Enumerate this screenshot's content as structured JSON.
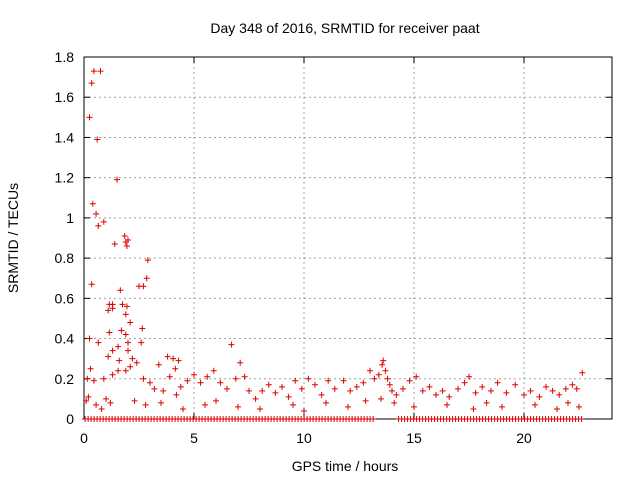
{
  "chart_data": {
    "type": "scatter",
    "title": "Day 348 of 2016, SRMTID for receiver paat",
    "xlabel": "GPS time / hours",
    "ylabel": "SRMTID / TECUs",
    "xlim": [
      0,
      24
    ],
    "ylim": [
      0,
      1.8
    ],
    "xticks": [
      0,
      5,
      10,
      15,
      20
    ],
    "yticks": [
      0,
      0.2,
      0.4,
      0.6,
      0.8,
      1,
      1.2,
      1.4,
      1.6,
      1.8
    ],
    "ytick_labels": [
      "0",
      "0.2",
      "0.4",
      "0.6",
      "0.8",
      "1",
      "1.2",
      "1.4",
      "1.6",
      "1.8"
    ],
    "grid": true,
    "marker": "+",
    "color": "#dd0000",
    "baseline_segments": [
      [
        0.05,
        13.2
      ],
      [
        14.3,
        22.7
      ]
    ],
    "points": [
      [
        0.45,
        1.73
      ],
      [
        0.35,
        1.67
      ],
      [
        0.25,
        1.5
      ],
      [
        0.6,
        1.39
      ],
      [
        0.75,
        1.73
      ],
      [
        0.4,
        1.07
      ],
      [
        0.55,
        1.02
      ],
      [
        0.65,
        0.96
      ],
      [
        0.9,
        0.98
      ],
      [
        1.5,
        1.19
      ],
      [
        1.85,
        0.91
      ],
      [
        1.9,
        0.88
      ],
      [
        2.0,
        0.89
      ],
      [
        1.95,
        0.86
      ],
      [
        1.4,
        0.87
      ],
      [
        2.9,
        0.79
      ],
      [
        2.85,
        0.7
      ],
      [
        2.7,
        0.66
      ],
      [
        2.5,
        0.66
      ],
      [
        0.35,
        0.67
      ],
      [
        1.65,
        0.64
      ],
      [
        1.15,
        0.57
      ],
      [
        1.3,
        0.57
      ],
      [
        1.75,
        0.57
      ],
      [
        1.95,
        0.56
      ],
      [
        1.9,
        0.52
      ],
      [
        2.1,
        0.48
      ],
      [
        1.1,
        0.54
      ],
      [
        1.3,
        0.55
      ],
      [
        2.65,
        0.45
      ],
      [
        1.7,
        0.44
      ],
      [
        1.9,
        0.42
      ],
      [
        1.15,
        0.43
      ],
      [
        2.0,
        0.38
      ],
      [
        0.65,
        0.38
      ],
      [
        0.25,
        0.4
      ],
      [
        2.6,
        0.38
      ],
      [
        1.55,
        0.36
      ],
      [
        1.3,
        0.34
      ],
      [
        2.0,
        0.34
      ],
      [
        1.1,
        0.31
      ],
      [
        2.2,
        0.3
      ],
      [
        1.6,
        0.29
      ],
      [
        2.4,
        0.28
      ],
      [
        0.3,
        0.25
      ],
      [
        1.55,
        0.24
      ],
      [
        1.3,
        0.22
      ],
      [
        1.9,
        0.24
      ],
      [
        2.1,
        0.26
      ],
      [
        0.15,
        0.2
      ],
      [
        0.45,
        0.19
      ],
      [
        0.9,
        0.2
      ],
      [
        2.7,
        0.2
      ],
      [
        3.4,
        0.27
      ],
      [
        3.8,
        0.31
      ],
      [
        4.05,
        0.3
      ],
      [
        4.3,
        0.29
      ],
      [
        4.15,
        0.25
      ],
      [
        6.7,
        0.37
      ],
      [
        3.0,
        0.18
      ],
      [
        3.2,
        0.15
      ],
      [
        3.6,
        0.14
      ],
      [
        3.9,
        0.21
      ],
      [
        4.2,
        0.12
      ],
      [
        4.4,
        0.16
      ],
      [
        4.7,
        0.19
      ],
      [
        5.0,
        0.22
      ],
      [
        5.3,
        0.18
      ],
      [
        5.6,
        0.21
      ],
      [
        5.9,
        0.24
      ],
      [
        6.2,
        0.18
      ],
      [
        6.5,
        0.15
      ],
      [
        6.9,
        0.2
      ],
      [
        7.1,
        0.28
      ],
      [
        7.3,
        0.21
      ],
      [
        7.5,
        0.14
      ],
      [
        7.8,
        0.1
      ],
      [
        8.1,
        0.14
      ],
      [
        8.4,
        0.17
      ],
      [
        8.7,
        0.13
      ],
      [
        9.0,
        0.16
      ],
      [
        9.3,
        0.11
      ],
      [
        9.6,
        0.19
      ],
      [
        9.9,
        0.15
      ],
      [
        10.2,
        0.2
      ],
      [
        10.5,
        0.17
      ],
      [
        10.8,
        0.12
      ],
      [
        11.1,
        0.19
      ],
      [
        11.4,
        0.15
      ],
      [
        11.8,
        0.19
      ],
      [
        12.1,
        0.14
      ],
      [
        12.4,
        0.16
      ],
      [
        12.7,
        0.18
      ],
      [
        13.0,
        0.24
      ],
      [
        13.2,
        0.2
      ],
      [
        13.4,
        0.22
      ],
      [
        13.55,
        0.27
      ],
      [
        13.6,
        0.29
      ],
      [
        13.7,
        0.24
      ],
      [
        13.8,
        0.2
      ],
      [
        13.9,
        0.17
      ],
      [
        14.0,
        0.14
      ],
      [
        14.2,
        0.12
      ],
      [
        14.5,
        0.15
      ],
      [
        14.8,
        0.19
      ],
      [
        15.1,
        0.21
      ],
      [
        15.4,
        0.14
      ],
      [
        15.7,
        0.16
      ],
      [
        16.0,
        0.12
      ],
      [
        16.3,
        0.14
      ],
      [
        16.6,
        0.11
      ],
      [
        17.0,
        0.15
      ],
      [
        17.3,
        0.18
      ],
      [
        17.5,
        0.21
      ],
      [
        17.8,
        0.13
      ],
      [
        18.1,
        0.16
      ],
      [
        18.5,
        0.14
      ],
      [
        18.8,
        0.18
      ],
      [
        19.2,
        0.13
      ],
      [
        19.6,
        0.17
      ],
      [
        20.0,
        0.12
      ],
      [
        20.3,
        0.14
      ],
      [
        20.7,
        0.11
      ],
      [
        21.0,
        0.16
      ],
      [
        21.3,
        0.14
      ],
      [
        21.6,
        0.12
      ],
      [
        21.9,
        0.15
      ],
      [
        22.2,
        0.17
      ],
      [
        22.4,
        0.15
      ],
      [
        22.65,
        0.23
      ],
      [
        3.5,
        0.08
      ],
      [
        4.5,
        0.05
      ],
      [
        5.5,
        0.07
      ],
      [
        6.0,
        0.09
      ],
      [
        7.0,
        0.06
      ],
      [
        8.0,
        0.05
      ],
      [
        9.5,
        0.07
      ],
      [
        10.0,
        0.04
      ],
      [
        11.0,
        0.08
      ],
      [
        12.0,
        0.06
      ],
      [
        12.8,
        0.09
      ],
      [
        13.5,
        0.1
      ],
      [
        14.1,
        0.08
      ],
      [
        15.0,
        0.06
      ],
      [
        16.5,
        0.07
      ],
      [
        17.7,
        0.05
      ],
      [
        18.3,
        0.08
      ],
      [
        19.0,
        0.06
      ],
      [
        20.5,
        0.07
      ],
      [
        21.5,
        0.05
      ],
      [
        22.0,
        0.08
      ],
      [
        22.5,
        0.06
      ],
      [
        0.1,
        0.09
      ],
      [
        0.2,
        0.11
      ],
      [
        0.55,
        0.07
      ],
      [
        0.8,
        0.05
      ],
      [
        1.0,
        0.1
      ],
      [
        1.2,
        0.08
      ],
      [
        2.3,
        0.09
      ],
      [
        2.8,
        0.07
      ]
    ]
  }
}
